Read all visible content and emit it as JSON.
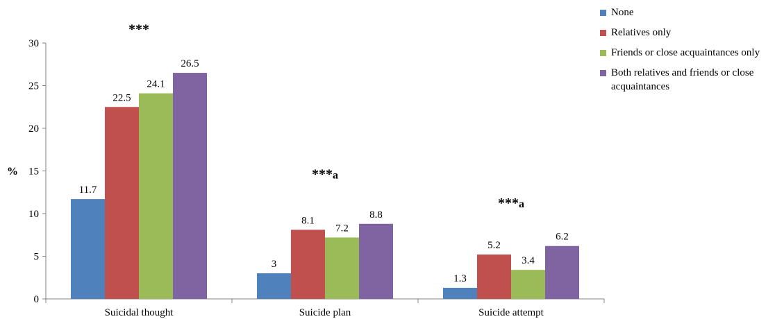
{
  "chart_data": {
    "type": "bar",
    "categories": [
      "Suicidal thought",
      "Suicide plan",
      "Suicide attempt"
    ],
    "series": [
      {
        "name": "None",
        "values": [
          11.7,
          3,
          1.3
        ],
        "labels": [
          "11.7",
          "3",
          "1.3"
        ],
        "color": "#4f81bd"
      },
      {
        "name": "Relatives only",
        "values": [
          22.5,
          8.1,
          5.2
        ],
        "labels": [
          "22.5",
          "8.1",
          "5.2"
        ],
        "color": "#c0504d"
      },
      {
        "name": "Friends or close acquaintances only",
        "values": [
          24.1,
          7.2,
          3.4
        ],
        "labels": [
          "24.1",
          "7.2",
          "3.4"
        ],
        "color": "#9bbb59"
      },
      {
        "name": "Both relatives and friends or close acquaintances",
        "values": [
          26.5,
          8.8,
          6.2
        ],
        "labels": [
          "26.5",
          "8.8",
          "6.2"
        ],
        "color": "#8064a2"
      }
    ],
    "annotations": [
      {
        "category": "Suicidal thought",
        "stars": "***",
        "suffix": "",
        "y": 31.6
      },
      {
        "category": "Suicide plan",
        "stars": "***",
        "suffix": "a",
        "y": 14.6
      },
      {
        "category": "Suicide attempt",
        "stars": "***",
        "suffix": "a",
        "y": 11.2
      }
    ],
    "ylabel": "%",
    "ylim": [
      0,
      30
    ],
    "yticks": [
      0,
      5,
      10,
      15,
      20,
      25,
      30
    ],
    "grid": false,
    "legend_position": "right"
  }
}
